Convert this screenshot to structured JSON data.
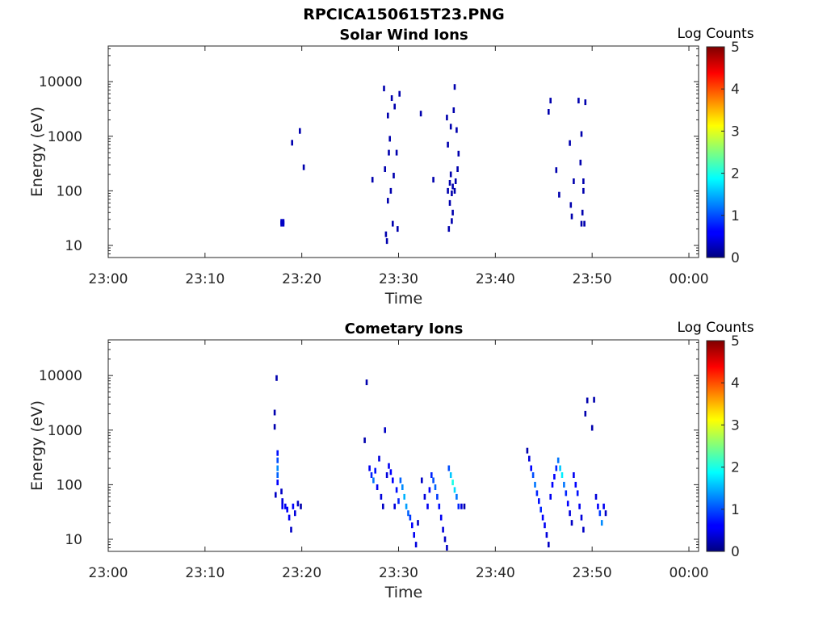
{
  "figure_title": "RPCICA150615T23.PNG",
  "chart_data": [
    {
      "type": "heatmap",
      "title": "Solar Wind Ions",
      "xlabel": "Time",
      "ylabel": "Energy (eV)",
      "x_ticks": [
        "23:00",
        "23:10",
        "23:20",
        "23:30",
        "23:40",
        "23:50",
        "00:00"
      ],
      "xlim_minutes": [
        0,
        61
      ],
      "y_scale": "log",
      "y_ticks": [
        "10",
        "100",
        "1000",
        "10000"
      ],
      "ylim": [
        6,
        45000
      ],
      "colorbar": {
        "label": "Log Counts",
        "ticks": [
          "0",
          "1",
          "2",
          "3",
          "4",
          "5"
        ],
        "range": [
          0,
          5
        ],
        "colormap": "jet"
      },
      "cells": [
        [
          17.9,
          27,
          0.3
        ],
        [
          17.9,
          25,
          0.3
        ],
        [
          18.1,
          27,
          0.3
        ],
        [
          18.1,
          25,
          0.3
        ],
        [
          19.0,
          760,
          0.2
        ],
        [
          19.8,
          1250,
          0.2
        ],
        [
          20.2,
          270,
          0.2
        ],
        [
          27.3,
          160,
          0.2
        ],
        [
          28.5,
          7500,
          0.2
        ],
        [
          28.6,
          250,
          0.2
        ],
        [
          28.7,
          16,
          0.2
        ],
        [
          28.8,
          12,
          0.2
        ],
        [
          28.9,
          66,
          0.2
        ],
        [
          28.9,
          2400,
          0.2
        ],
        [
          29.0,
          500,
          0.2
        ],
        [
          29.1,
          900,
          0.2
        ],
        [
          29.3,
          5000,
          0.2
        ],
        [
          29.2,
          100,
          0.2
        ],
        [
          29.4,
          25,
          0.2
        ],
        [
          29.5,
          190,
          0.2
        ],
        [
          29.6,
          3500,
          0.2
        ],
        [
          29.8,
          500,
          0.2
        ],
        [
          29.9,
          20,
          0.2
        ],
        [
          30.1,
          6000,
          0.2
        ],
        [
          32.3,
          2600,
          0.2
        ],
        [
          33.6,
          160,
          0.2
        ],
        [
          35.0,
          2200,
          0.2
        ],
        [
          35.1,
          700,
          0.2
        ],
        [
          35.1,
          100,
          0.2
        ],
        [
          35.2,
          20,
          0.2
        ],
        [
          35.3,
          140,
          0.2
        ],
        [
          35.3,
          60,
          0.2
        ],
        [
          35.4,
          1500,
          0.2
        ],
        [
          35.4,
          200,
          0.2
        ],
        [
          35.5,
          90,
          0.2
        ],
        [
          35.5,
          28,
          0.2
        ],
        [
          35.6,
          120,
          0.2
        ],
        [
          35.6,
          40,
          0.2
        ],
        [
          35.7,
          3000,
          0.2
        ],
        [
          35.8,
          8000,
          0.2
        ],
        [
          35.8,
          100,
          0.2
        ],
        [
          35.9,
          150,
          0.2
        ],
        [
          36.0,
          1300,
          0.2
        ],
        [
          36.1,
          250,
          0.2
        ],
        [
          36.2,
          480,
          0.2
        ],
        [
          45.5,
          2800,
          0.2
        ],
        [
          45.7,
          4500,
          0.2
        ],
        [
          46.3,
          240,
          0.2
        ],
        [
          46.6,
          85,
          0.2
        ],
        [
          47.7,
          750,
          0.2
        ],
        [
          47.8,
          55,
          0.2
        ],
        [
          47.9,
          34,
          0.2
        ],
        [
          48.1,
          150,
          0.2
        ],
        [
          48.6,
          4500,
          0.2
        ],
        [
          48.8,
          330,
          0.2
        ],
        [
          48.9,
          1100,
          0.2
        ],
        [
          48.9,
          25,
          0.2
        ],
        [
          49.0,
          40,
          0.2
        ],
        [
          49.1,
          150,
          0.2
        ],
        [
          49.2,
          25,
          0.2
        ],
        [
          49.3,
          4200,
          0.2
        ],
        [
          49.1,
          100,
          0.2
        ]
      ]
    },
    {
      "type": "heatmap",
      "title": "Cometary Ions",
      "xlabel": "Time",
      "ylabel": "Energy (eV)",
      "x_ticks": [
        "23:00",
        "23:10",
        "23:20",
        "23:30",
        "23:40",
        "23:50",
        "00:00"
      ],
      "xlim_minutes": [
        0,
        61
      ],
      "y_scale": "log",
      "y_ticks": [
        "10",
        "100",
        "1000",
        "10000"
      ],
      "ylim": [
        6,
        45000
      ],
      "colorbar": {
        "label": "Log Counts",
        "ticks": [
          "0",
          "1",
          "2",
          "3",
          "4",
          "5"
        ],
        "range": [
          0,
          5
        ],
        "colormap": "jet"
      },
      "cells": [
        [
          17.4,
          9000,
          0.2
        ],
        [
          17.2,
          2100,
          0.2
        ],
        [
          17.2,
          1150,
          0.2
        ],
        [
          17.5,
          380,
          0.7
        ],
        [
          17.5,
          280,
          1.0
        ],
        [
          17.5,
          200,
          1.3
        ],
        [
          17.5,
          150,
          1.1
        ],
        [
          17.5,
          110,
          0.6
        ],
        [
          17.3,
          65,
          0.3
        ],
        [
          17.9,
          75,
          0.3
        ],
        [
          18.0,
          50,
          0.4
        ],
        [
          18.0,
          40,
          0.5
        ],
        [
          18.3,
          40,
          0.5
        ],
        [
          18.5,
          35,
          0.6
        ],
        [
          18.7,
          25,
          0.5
        ],
        [
          18.9,
          15,
          0.3
        ],
        [
          19.1,
          40,
          0.6
        ],
        [
          19.3,
          30,
          0.4
        ],
        [
          19.6,
          45,
          0.3
        ],
        [
          19.9,
          40,
          0.2
        ],
        [
          26.7,
          7500,
          0.2
        ],
        [
          26.5,
          650,
          0.2
        ],
        [
          27.0,
          200,
          0.5
        ],
        [
          27.2,
          150,
          0.8
        ],
        [
          27.4,
          120,
          1.2
        ],
        [
          27.6,
          180,
          0.7
        ],
        [
          27.8,
          90,
          0.5
        ],
        [
          28.0,
          300,
          0.4
        ],
        [
          28.2,
          60,
          0.4
        ],
        [
          28.4,
          40,
          0.3
        ],
        [
          28.6,
          1000,
          0.3
        ],
        [
          28.8,
          150,
          0.4
        ],
        [
          29.0,
          220,
          0.5
        ],
        [
          29.2,
          170,
          0.6
        ],
        [
          29.4,
          120,
          0.6
        ],
        [
          29.6,
          40,
          0.4
        ],
        [
          29.8,
          80,
          0.7
        ],
        [
          30.0,
          50,
          0.8
        ],
        [
          30.2,
          120,
          1.1
        ],
        [
          30.4,
          90,
          1.3
        ],
        [
          30.6,
          60,
          1.5
        ],
        [
          30.8,
          40,
          1.4
        ],
        [
          31.0,
          30,
          1.1
        ],
        [
          31.2,
          25,
          0.9
        ],
        [
          31.4,
          18,
          0.6
        ],
        [
          31.6,
          12,
          0.5
        ],
        [
          31.8,
          8,
          0.4
        ],
        [
          32.0,
          20,
          0.3
        ],
        [
          32.4,
          120,
          0.3
        ],
        [
          32.7,
          60,
          0.4
        ],
        [
          33.0,
          40,
          0.5
        ],
        [
          33.2,
          80,
          0.6
        ],
        [
          33.4,
          150,
          0.8
        ],
        [
          33.6,
          120,
          1.0
        ],
        [
          33.8,
          90,
          1.1
        ],
        [
          34.0,
          60,
          0.9
        ],
        [
          34.2,
          40,
          0.7
        ],
        [
          34.4,
          25,
          0.5
        ],
        [
          34.6,
          15,
          0.4
        ],
        [
          34.8,
          10,
          0.3
        ],
        [
          35.0,
          7,
          0.3
        ],
        [
          35.2,
          200,
          1.0
        ],
        [
          35.4,
          150,
          1.6
        ],
        [
          35.6,
          110,
          2.0
        ],
        [
          35.8,
          80,
          1.7
        ],
        [
          36.0,
          60,
          1.2
        ],
        [
          36.2,
          40,
          0.8
        ],
        [
          36.5,
          40,
          0.4
        ],
        [
          36.8,
          40,
          0.2
        ],
        [
          43.3,
          420,
          0.2
        ],
        [
          43.5,
          300,
          0.4
        ],
        [
          43.7,
          200,
          0.6
        ],
        [
          43.9,
          150,
          1.0
        ],
        [
          44.1,
          100,
          1.2
        ],
        [
          44.3,
          70,
          0.8
        ],
        [
          44.5,
          50,
          0.7
        ],
        [
          44.7,
          35,
          0.8
        ],
        [
          44.9,
          25,
          0.6
        ],
        [
          45.1,
          18,
          0.5
        ],
        [
          45.3,
          12,
          0.4
        ],
        [
          45.5,
          8,
          0.3
        ],
        [
          45.7,
          60,
          0.5
        ],
        [
          45.9,
          100,
          0.6
        ],
        [
          46.1,
          140,
          0.6
        ],
        [
          46.3,
          200,
          0.8
        ],
        [
          46.5,
          280,
          1.2
        ],
        [
          46.7,
          200,
          1.6
        ],
        [
          46.9,
          150,
          1.8
        ],
        [
          47.1,
          100,
          1.2
        ],
        [
          47.3,
          70,
          0.8
        ],
        [
          47.5,
          45,
          0.6
        ],
        [
          47.7,
          30,
          0.4
        ],
        [
          47.9,
          20,
          0.3
        ],
        [
          48.1,
          150,
          0.5
        ],
        [
          48.3,
          100,
          0.6
        ],
        [
          48.5,
          70,
          0.7
        ],
        [
          48.7,
          40,
          0.5
        ],
        [
          48.9,
          25,
          0.4
        ],
        [
          49.1,
          15,
          0.3
        ],
        [
          49.3,
          2000,
          0.2
        ],
        [
          49.5,
          3500,
          0.2
        ],
        [
          50.2,
          3600,
          0.2
        ],
        [
          50.0,
          1100,
          0.2
        ],
        [
          50.4,
          60,
          0.4
        ],
        [
          50.6,
          40,
          0.6
        ],
        [
          50.8,
          30,
          0.9
        ],
        [
          51.0,
          20,
          1.3
        ],
        [
          51.2,
          40,
          0.5
        ],
        [
          51.4,
          30,
          0.3
        ]
      ]
    }
  ]
}
